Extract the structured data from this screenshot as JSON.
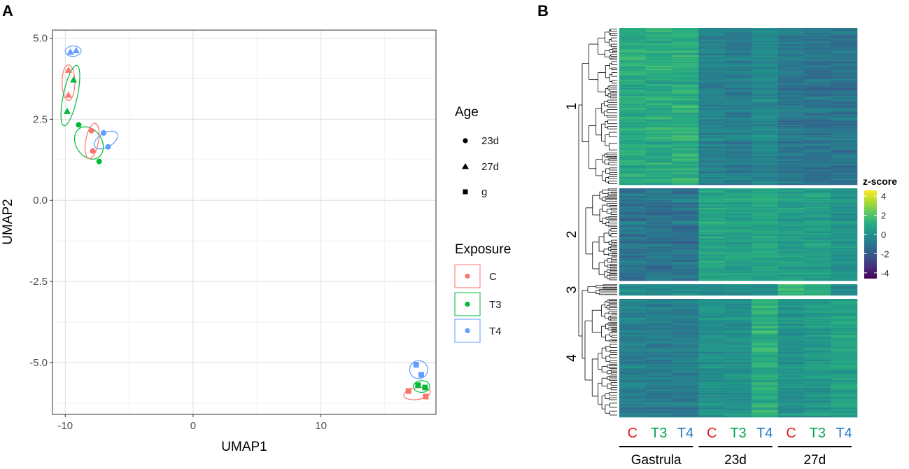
{
  "panels": {
    "a": "A",
    "b": "B"
  },
  "umap": {
    "chart_data": {
      "type": "scatter",
      "xlabel": "UMAP1",
      "ylabel": "UMAP2",
      "xlim": [
        -11,
        19
      ],
      "ylim": [
        -6.6,
        5.25
      ],
      "xticks": [
        -10,
        0,
        10
      ],
      "xtick_labels": [
        "-10",
        "0",
        "10"
      ],
      "yticks": [
        5.0,
        2.5,
        0.0,
        -2.5,
        -5.0
      ],
      "ytick_labels": [
        "5.0",
        "2.5",
        "0.0",
        "-2.5",
        "-5.0"
      ],
      "grid": true,
      "points": [
        {
          "x": -9.6,
          "y": 4.58,
          "age": "27d",
          "exposure": "T4"
        },
        {
          "x": -9.15,
          "y": 4.62,
          "age": "27d",
          "exposure": "T4"
        },
        {
          "x": -9.75,
          "y": 4.02,
          "age": "27d",
          "exposure": "C"
        },
        {
          "x": -9.75,
          "y": 3.25,
          "age": "27d",
          "exposure": "C"
        },
        {
          "x": -9.35,
          "y": 3.72,
          "age": "27d",
          "exposure": "T3"
        },
        {
          "x": -9.85,
          "y": 2.75,
          "age": "27d",
          "exposure": "T3"
        },
        {
          "x": -8.95,
          "y": 2.33,
          "age": "23d",
          "exposure": "T3"
        },
        {
          "x": -7.35,
          "y": 1.2,
          "age": "23d",
          "exposure": "T3"
        },
        {
          "x": -7.95,
          "y": 2.15,
          "age": "23d",
          "exposure": "C"
        },
        {
          "x": -7.85,
          "y": 1.52,
          "age": "23d",
          "exposure": "C"
        },
        {
          "x": -7.0,
          "y": 2.08,
          "age": "23d",
          "exposure": "T4"
        },
        {
          "x": -6.65,
          "y": 1.65,
          "age": "23d",
          "exposure": "T4"
        },
        {
          "x": 17.45,
          "y": -5.07,
          "age": "g",
          "exposure": "T4"
        },
        {
          "x": 17.85,
          "y": -5.38,
          "age": "g",
          "exposure": "T4"
        },
        {
          "x": 17.6,
          "y": -5.7,
          "age": "g",
          "exposure": "T3"
        },
        {
          "x": 18.15,
          "y": -5.77,
          "age": "g",
          "exposure": "T3"
        },
        {
          "x": 16.85,
          "y": -5.88,
          "age": "g",
          "exposure": "C"
        },
        {
          "x": 18.2,
          "y": -6.05,
          "age": "g",
          "exposure": "C"
        }
      ],
      "groups": [
        {
          "exposure": "T4",
          "age": "27d",
          "cx": -9.38,
          "cy": 4.6,
          "rx": 0.62,
          "ry": 0.16,
          "rot": -3
        },
        {
          "exposure": "C",
          "age": "27d",
          "cx": -9.75,
          "cy": 3.63,
          "rx": 0.5,
          "ry": 0.55,
          "rot": 0
        },
        {
          "exposure": "T3",
          "age": "27d",
          "cx": -9.6,
          "cy": 3.23,
          "rx": 0.55,
          "ry": 0.95,
          "rot": 12
        },
        {
          "exposure": "T3",
          "age": "23d",
          "cx": -8.15,
          "cy": 1.77,
          "rx": 1.35,
          "ry": 0.4,
          "rot": 57
        },
        {
          "exposure": "C",
          "age": "23d",
          "cx": -7.9,
          "cy": 1.83,
          "rx": 0.5,
          "ry": 0.55,
          "rot": 10
        },
        {
          "exposure": "T4",
          "age": "23d",
          "cx": -6.82,
          "cy": 1.86,
          "rx": 0.55,
          "ry": 0.4,
          "rot": 60
        },
        {
          "exposure": "T4",
          "age": "g",
          "cx": 17.65,
          "cy": -5.22,
          "rx": 0.7,
          "ry": 0.28,
          "rot": 55
        },
        {
          "exposure": "T3",
          "age": "g",
          "cx": 17.88,
          "cy": -5.74,
          "rx": 0.65,
          "ry": 0.18,
          "rot": 0
        },
        {
          "exposure": "C",
          "age": "g",
          "cx": 17.52,
          "cy": -5.96,
          "rx": 1.05,
          "ry": 0.18,
          "rot": -8
        }
      ],
      "legend": {
        "age_title": "Age",
        "ages": [
          {
            "label": "23d",
            "shape": "circle"
          },
          {
            "label": "27d",
            "shape": "triangle"
          },
          {
            "label": "g",
            "shape": "square"
          }
        ],
        "exposure_title": "Exposure",
        "exposures": [
          {
            "label": "C",
            "color": "#F8766D"
          },
          {
            "label": "T3",
            "color": "#00BA38"
          },
          {
            "label": "T4",
            "color": "#619CFF"
          }
        ]
      }
    }
  },
  "heatmap": {
    "chart_data": {
      "type": "heatmap",
      "colorbar": {
        "title": "z-score",
        "min": -4.6,
        "max": 4.6,
        "ticks": [
          4,
          2,
          0,
          -2,
          -4
        ],
        "tick_labels": [
          "4",
          "2",
          "0",
          "-2",
          "-4"
        ]
      },
      "palette": [
        "#440154",
        "#472D7B",
        "#3B528B",
        "#2C728E",
        "#21918C",
        "#28AE80",
        "#5EC962",
        "#ADDC30",
        "#FDE725"
      ],
      "columns": [
        {
          "label": "C",
          "color": "#E8161B"
        },
        {
          "label": "T3",
          "color": "#00A651"
        },
        {
          "label": "T4",
          "color": "#1F77C4"
        },
        {
          "label": "C",
          "color": "#E8161B"
        },
        {
          "label": "T3",
          "color": "#00A651"
        },
        {
          "label": "T4",
          "color": "#1F77C4"
        },
        {
          "label": "C",
          "color": "#E8161B"
        },
        {
          "label": "T3",
          "color": "#00A651"
        },
        {
          "label": "T4",
          "color": "#1F77C4"
        }
      ],
      "column_groups": [
        {
          "label": "Gastrula",
          "span": [
            0,
            2
          ]
        },
        {
          "label": "23d",
          "span": [
            3,
            5
          ]
        },
        {
          "label": "27d",
          "span": [
            6,
            8
          ]
        }
      ],
      "clusters": [
        {
          "label": "1",
          "rows": 120,
          "base": [
            0.9,
            0.9,
            1.0,
            -0.5,
            -0.6,
            -0.3,
            -0.8,
            -0.9,
            -0.9
          ]
        },
        {
          "label": "2",
          "rows": 70,
          "base": [
            -1.0,
            -1.0,
            -1.0,
            0.6,
            0.5,
            0.7,
            0.4,
            0.4,
            0.1
          ]
        },
        {
          "label": "3",
          "rows": 10,
          "base": [
            -0.2,
            -0.3,
            -0.3,
            -0.3,
            -0.2,
            -0.2,
            1.2,
            0.8,
            -0.3
          ]
        },
        {
          "label": "4",
          "rows": 85,
          "base": [
            -0.6,
            -0.6,
            -0.6,
            0.0,
            0.0,
            1.0,
            0.1,
            0.3,
            0.6
          ]
        }
      ]
    }
  }
}
